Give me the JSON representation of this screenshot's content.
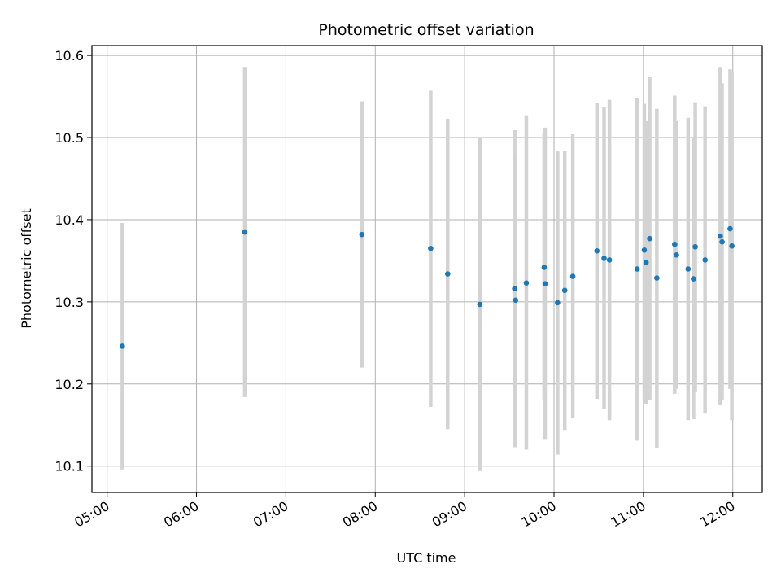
{
  "chart_data": {
    "type": "scatter",
    "title": "Photometric offset variation",
    "xlabel": "UTC time",
    "ylabel": "Photometric offset",
    "x_unit": "hours UTC",
    "xlim": [
      4.83,
      12.33
    ],
    "ylim": [
      10.068,
      10.612
    ],
    "x_ticks": [
      {
        "value": 5,
        "label": "05:00"
      },
      {
        "value": 6,
        "label": "06:00"
      },
      {
        "value": 7,
        "label": "07:00"
      },
      {
        "value": 8,
        "label": "08:00"
      },
      {
        "value": 9,
        "label": "09:00"
      },
      {
        "value": 10,
        "label": "10:00"
      },
      {
        "value": 11,
        "label": "11:00"
      },
      {
        "value": 12,
        "label": "12:00"
      }
    ],
    "y_ticks": [
      {
        "value": 10.1,
        "label": "10.1"
      },
      {
        "value": 10.2,
        "label": "10.2"
      },
      {
        "value": 10.3,
        "label": "10.3"
      },
      {
        "value": 10.4,
        "label": "10.4"
      },
      {
        "value": 10.5,
        "label": "10.5"
      },
      {
        "value": 10.6,
        "label": "10.6"
      }
    ],
    "grid": true,
    "point_color": "#1f77b4",
    "errorbar_color": "#d3d3d3",
    "points": [
      {
        "x": 5.17,
        "y": 10.246,
        "ylow": 10.096,
        "yhigh": 10.396
      },
      {
        "x": 6.54,
        "y": 10.385,
        "ylow": 10.184,
        "yhigh": 10.586
      },
      {
        "x": 7.85,
        "y": 10.382,
        "ylow": 10.22,
        "yhigh": 10.544
      },
      {
        "x": 8.62,
        "y": 10.365,
        "ylow": 10.172,
        "yhigh": 10.557
      },
      {
        "x": 8.81,
        "y": 10.334,
        "ylow": 10.145,
        "yhigh": 10.523
      },
      {
        "x": 9.17,
        "y": 10.297,
        "ylow": 10.094,
        "yhigh": 10.5
      },
      {
        "x": 9.56,
        "y": 10.316,
        "ylow": 10.123,
        "yhigh": 10.509
      },
      {
        "x": 9.57,
        "y": 10.302,
        "ylow": 10.127,
        "yhigh": 10.476
      },
      {
        "x": 9.69,
        "y": 10.323,
        "ylow": 10.12,
        "yhigh": 10.527
      },
      {
        "x": 9.89,
        "y": 10.342,
        "ylow": 10.18,
        "yhigh": 10.505
      },
      {
        "x": 9.9,
        "y": 10.322,
        "ylow": 10.132,
        "yhigh": 10.512
      },
      {
        "x": 10.04,
        "y": 10.299,
        "ylow": 10.114,
        "yhigh": 10.483
      },
      {
        "x": 10.12,
        "y": 10.314,
        "ylow": 10.144,
        "yhigh": 10.484
      },
      {
        "x": 10.21,
        "y": 10.331,
        "ylow": 10.158,
        "yhigh": 10.504
      },
      {
        "x": 10.48,
        "y": 10.362,
        "ylow": 10.182,
        "yhigh": 10.542
      },
      {
        "x": 10.56,
        "y": 10.353,
        "ylow": 10.17,
        "yhigh": 10.537
      },
      {
        "x": 10.62,
        "y": 10.351,
        "ylow": 10.156,
        "yhigh": 10.546
      },
      {
        "x": 10.93,
        "y": 10.34,
        "ylow": 10.131,
        "yhigh": 10.548
      },
      {
        "x": 11.01,
        "y": 10.363,
        "ylow": 10.18,
        "yhigh": 10.541
      },
      {
        "x": 11.03,
        "y": 10.348,
        "ylow": 10.176,
        "yhigh": 10.52
      },
      {
        "x": 11.07,
        "y": 10.377,
        "ylow": 10.18,
        "yhigh": 10.574
      },
      {
        "x": 11.15,
        "y": 10.329,
        "ylow": 10.122,
        "yhigh": 10.535
      },
      {
        "x": 11.35,
        "y": 10.37,
        "ylow": 10.188,
        "yhigh": 10.551
      },
      {
        "x": 11.37,
        "y": 10.357,
        "ylow": 10.194,
        "yhigh": 10.52
      },
      {
        "x": 11.5,
        "y": 10.34,
        "ylow": 10.156,
        "yhigh": 10.524
      },
      {
        "x": 11.56,
        "y": 10.328,
        "ylow": 10.157,
        "yhigh": 10.5
      },
      {
        "x": 11.58,
        "y": 10.367,
        "ylow": 10.19,
        "yhigh": 10.543
      },
      {
        "x": 11.69,
        "y": 10.351,
        "ylow": 10.164,
        "yhigh": 10.538
      },
      {
        "x": 11.86,
        "y": 10.38,
        "ylow": 10.174,
        "yhigh": 10.586
      },
      {
        "x": 11.88,
        "y": 10.373,
        "ylow": 10.18,
        "yhigh": 10.566
      },
      {
        "x": 11.97,
        "y": 10.389,
        "ylow": 10.194,
        "yhigh": 10.583
      },
      {
        "x": 11.99,
        "y": 10.368,
        "ylow": 10.156,
        "yhigh": 10.58
      }
    ]
  }
}
